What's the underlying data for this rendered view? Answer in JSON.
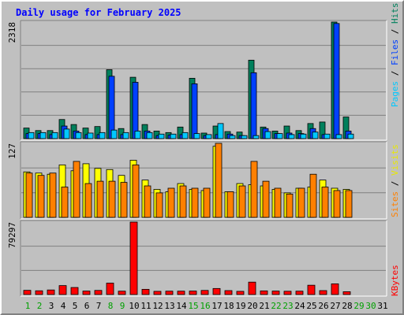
{
  "title": "Daily usage for February 2025",
  "colors": {
    "background": "#c0c0c0",
    "plot_bg": "#c0c0c0",
    "hits": "#00805c",
    "files": "#0040ff",
    "pages": "#00c8ff",
    "visits": "#ffff00",
    "sites": "#ff8000",
    "kbytes": "#ff0000",
    "title": "#0000ff",
    "weekday": "#000000",
    "weekend": "#00a000"
  },
  "legend_right_top": [
    {
      "text": "Pages",
      "color": "#00c8ff"
    },
    {
      "text": " / ",
      "color": "#000000"
    },
    {
      "text": "Files",
      "color": "#0040ff"
    },
    {
      "text": " / ",
      "color": "#000000"
    },
    {
      "text": "Hits",
      "color": "#00805c"
    }
  ],
  "legend_right_mid": [
    {
      "text": "Sites",
      "color": "#ff8000"
    },
    {
      "text": " / ",
      "color": "#000000"
    },
    {
      "text": "Visits",
      "color": "#e8e800"
    }
  ],
  "legend_right_bot": [
    {
      "text": "KBytes",
      "color": "#ff0000"
    }
  ],
  "chart_data": {
    "type": "bar",
    "days": [
      "1",
      "2",
      "3",
      "4",
      "5",
      "6",
      "7",
      "8",
      "9",
      "10",
      "11",
      "12",
      "13",
      "14",
      "15",
      "16",
      "17",
      "18",
      "19",
      "20",
      "21",
      "22",
      "23",
      "24",
      "25",
      "26",
      "27",
      "28",
      "29",
      "30",
      "31"
    ],
    "weekend_days": [
      1,
      2,
      8,
      9,
      15,
      16,
      22,
      23,
      29,
      30
    ],
    "panels": [
      {
        "name": "hits-files-pages",
        "max_label": "2318",
        "max": 2318,
        "series": [
          {
            "name": "Hits",
            "values": [
              210,
              160,
              160,
              380,
              280,
              210,
              240,
              1370,
              200,
              1220,
              280,
              150,
              120,
              230,
              1200,
              110,
              250,
              140,
              130,
              1560,
              230,
              150,
              250,
              160,
              300,
              330,
              2318,
              430,
              0,
              0,
              0
            ]
          },
          {
            "name": "Files",
            "values": [
              100,
              100,
              80,
              250,
              150,
              80,
              80,
              1240,
              80,
              1120,
              150,
              60,
              70,
              80,
              1090,
              60,
              80,
              90,
              60,
              1310,
              200,
              100,
              110,
              100,
              200,
              80,
              2290,
              150,
              0,
              0,
              0
            ]
          },
          {
            "name": "Pages",
            "values": [
              120,
              120,
              120,
              190,
              120,
              110,
              120,
              170,
              120,
              150,
              120,
              90,
              90,
              120,
              100,
              80,
              300,
              60,
              60,
              60,
              140,
              100,
              80,
              90,
              130,
              90,
              80,
              90,
              0,
              0,
              0
            ]
          }
        ]
      },
      {
        "name": "visits-sites",
        "max_label": "127",
        "max": 127,
        "series": [
          {
            "name": "Visits",
            "values": [
              78,
              76,
              74,
              90,
              80,
              92,
              84,
              82,
              72,
              98,
              64,
              48,
              44,
              58,
              48,
              46,
              122,
              44,
              58,
              56,
              54,
              48,
              42,
              50,
              52,
              64,
              50,
              48,
              0,
              0,
              0
            ]
          },
          {
            "name": "Sites",
            "values": [
              76,
              72,
              76,
              52,
              96,
              58,
              62,
              62,
              60,
              90,
              54,
              42,
              50,
              54,
              50,
              50,
              127,
              44,
              54,
              96,
              62,
              50,
              40,
              50,
              74,
              52,
              46,
              46,
              0,
              0,
              0
            ]
          }
        ]
      },
      {
        "name": "kbytes",
        "max_label": "79297",
        "max": 79297,
        "series": [
          {
            "name": "KBytes",
            "values": [
              4600,
              4100,
              5000,
              9800,
              7700,
              3800,
              4500,
              12500,
              3700,
              79297,
              5700,
              3500,
              3700,
              3700,
              3800,
              4500,
              6600,
              4300,
              3500,
              13600,
              4000,
              3800,
              3600,
              3700,
              10200,
              4300,
              11700,
              3100,
              0,
              0,
              0
            ]
          }
        ]
      }
    ]
  }
}
